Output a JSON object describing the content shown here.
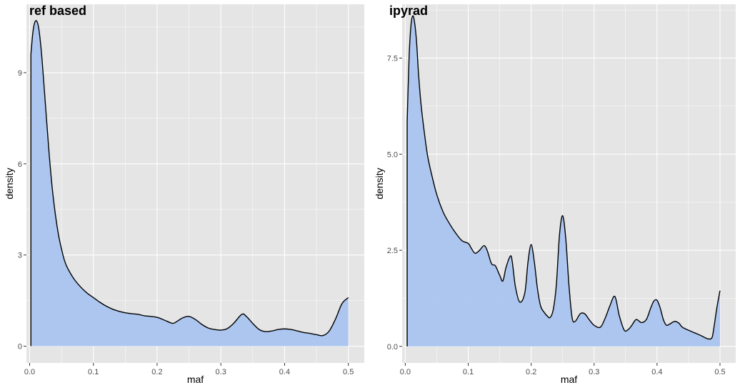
{
  "colors": {
    "panel_background": "#e5e5e5",
    "grid_major": "#ffffff",
    "fill": "#a9c4ef",
    "line": "#000000"
  },
  "chart_data": [
    {
      "type": "area",
      "subtype": "density",
      "title": "ref based",
      "xlabel": "maf",
      "ylabel": "density",
      "xlim": [
        -0.005,
        0.525
      ],
      "ylim": [
        -0.55,
        11.25
      ],
      "x_ticks": [
        0.0,
        0.1,
        0.2,
        0.3,
        0.4,
        0.5
      ],
      "x_tick_labels": [
        "0.0",
        "0.1",
        "0.2",
        "0.3",
        "0.4",
        "0.5"
      ],
      "y_ticks": [
        0,
        3,
        6,
        9
      ],
      "y_tick_labels": [
        "0",
        "3",
        "6",
        "9"
      ],
      "grid": true,
      "legend": "none",
      "x": [
        0.002,
        0.005,
        0.008,
        0.011,
        0.014,
        0.017,
        0.02,
        0.025,
        0.03,
        0.035,
        0.04,
        0.045,
        0.05,
        0.055,
        0.06,
        0.07,
        0.08,
        0.09,
        0.1,
        0.11,
        0.12,
        0.13,
        0.14,
        0.15,
        0.16,
        0.17,
        0.18,
        0.19,
        0.2,
        0.21,
        0.22,
        0.225,
        0.23,
        0.24,
        0.25,
        0.26,
        0.27,
        0.28,
        0.29,
        0.3,
        0.31,
        0.32,
        0.333,
        0.34,
        0.35,
        0.36,
        0.37,
        0.38,
        0.39,
        0.4,
        0.41,
        0.42,
        0.43,
        0.44,
        0.45,
        0.46,
        0.47,
        0.48,
        0.49,
        0.5
      ],
      "y": [
        9.6,
        10.3,
        10.65,
        10.7,
        10.5,
        10.0,
        9.3,
        7.9,
        6.5,
        5.3,
        4.4,
        3.7,
        3.2,
        2.8,
        2.55,
        2.2,
        1.95,
        1.75,
        1.6,
        1.45,
        1.32,
        1.22,
        1.15,
        1.1,
        1.07,
        1.05,
        1.0,
        0.98,
        0.95,
        0.87,
        0.78,
        0.75,
        0.8,
        0.93,
        0.98,
        0.88,
        0.72,
        0.6,
        0.55,
        0.53,
        0.58,
        0.75,
        1.05,
        0.98,
        0.75,
        0.55,
        0.48,
        0.5,
        0.55,
        0.57,
        0.55,
        0.5,
        0.45,
        0.42,
        0.38,
        0.35,
        0.5,
        0.9,
        1.4,
        1.6
      ]
    },
    {
      "type": "area",
      "subtype": "density",
      "title": "ipyrad",
      "xlabel": "maf",
      "ylabel": "density",
      "xlim": [
        -0.005,
        0.525
      ],
      "ylim": [
        -0.43,
        8.9
      ],
      "x_ticks": [
        0.0,
        0.1,
        0.2,
        0.3,
        0.4,
        0.5
      ],
      "x_tick_labels": [
        "0.0",
        "0.1",
        "0.2",
        "0.3",
        "0.4",
        "0.5"
      ],
      "y_ticks": [
        0.0,
        2.5,
        5.0,
        7.5
      ],
      "y_tick_labels": [
        "0.0",
        "2.5",
        "5.0",
        "7.5"
      ],
      "grid": true,
      "legend": "none",
      "x": [
        0.003,
        0.006,
        0.009,
        0.012,
        0.015,
        0.018,
        0.021,
        0.025,
        0.03,
        0.035,
        0.04,
        0.05,
        0.06,
        0.07,
        0.08,
        0.09,
        0.1,
        0.105,
        0.111,
        0.118,
        0.125,
        0.13,
        0.137,
        0.143,
        0.15,
        0.155,
        0.16,
        0.167,
        0.17,
        0.175,
        0.182,
        0.19,
        0.195,
        0.2,
        0.205,
        0.21,
        0.215,
        0.22,
        0.225,
        0.23,
        0.235,
        0.24,
        0.245,
        0.25,
        0.255,
        0.26,
        0.265,
        0.27,
        0.278,
        0.285,
        0.292,
        0.3,
        0.31,
        0.318,
        0.325,
        0.333,
        0.34,
        0.348,
        0.355,
        0.36,
        0.367,
        0.375,
        0.383,
        0.39,
        0.395,
        0.4,
        0.405,
        0.41,
        0.415,
        0.42,
        0.428,
        0.435,
        0.44,
        0.45,
        0.46,
        0.47,
        0.48,
        0.487,
        0.49,
        0.495,
        0.5
      ],
      "y": [
        5.85,
        7.5,
        8.35,
        8.6,
        8.4,
        7.9,
        7.1,
        6.3,
        5.6,
        5.0,
        4.6,
        3.95,
        3.5,
        3.2,
        2.95,
        2.75,
        2.68,
        2.55,
        2.42,
        2.5,
        2.62,
        2.5,
        2.15,
        2.1,
        1.85,
        1.7,
        2.05,
        2.35,
        2.2,
        1.55,
        1.15,
        1.4,
        2.2,
        2.65,
        2.2,
        1.5,
        1.05,
        0.9,
        0.8,
        0.75,
        0.95,
        1.6,
        2.9,
        3.4,
        2.8,
        1.6,
        0.75,
        0.65,
        0.85,
        0.85,
        0.7,
        0.55,
        0.5,
        0.75,
        1.05,
        1.3,
        0.8,
        0.42,
        0.45,
        0.55,
        0.7,
        0.62,
        0.7,
        1.0,
        1.18,
        1.2,
        1.0,
        0.7,
        0.55,
        0.58,
        0.65,
        0.6,
        0.5,
        0.42,
        0.35,
        0.28,
        0.2,
        0.22,
        0.45,
        1.0,
        1.45
      ]
    }
  ]
}
